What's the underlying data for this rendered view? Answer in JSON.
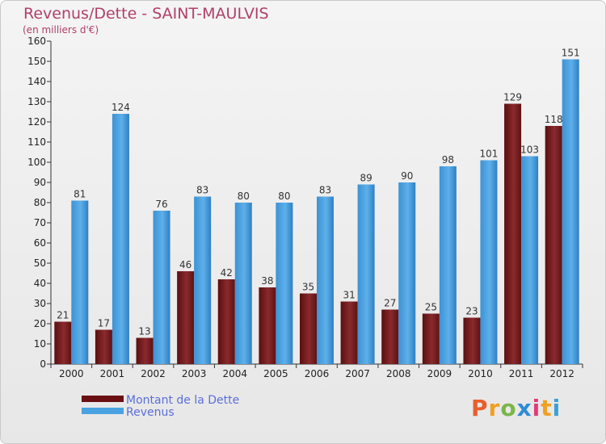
{
  "header": {
    "title": "Revenus/Dette - SAINT-MAULVIS",
    "subtitle": "(en milliers d'€)"
  },
  "logo": {
    "text": "Proxiti",
    "colors": [
      "#e85f2b",
      "#f0a020",
      "#7ab648",
      "#2e8bd6",
      "#e23b7a",
      "#f0a020",
      "#3aa0d8"
    ]
  },
  "colors": {
    "dette": "#7a1a1c",
    "revenus": "#4aa3e0",
    "title": "#b0406a"
  },
  "chart_data": {
    "type": "bar",
    "title": "Revenus/Dette - SAINT-MAULVIS",
    "subtitle": "(en milliers d'€)",
    "xlabel": "",
    "ylabel": "",
    "ylim": [
      0,
      160
    ],
    "yticks": [
      0,
      10,
      20,
      30,
      40,
      50,
      60,
      70,
      80,
      90,
      100,
      110,
      120,
      130,
      140,
      150,
      160
    ],
    "grid": false,
    "legend_position": "bottom-left",
    "categories": [
      "2000",
      "2001",
      "2002",
      "2003",
      "2004",
      "2005",
      "2006",
      "2007",
      "2008",
      "2009",
      "2010",
      "2011",
      "2012"
    ],
    "series": [
      {
        "name": "Montant de la Dette",
        "color": "#7a1a1c",
        "values": [
          21,
          17,
          13,
          46,
          42,
          38,
          35,
          31,
          27,
          25,
          23,
          129,
          118
        ]
      },
      {
        "name": "Revenus",
        "color": "#4aa3e0",
        "values": [
          81,
          124,
          76,
          83,
          80,
          80,
          83,
          89,
          90,
          98,
          101,
          103,
          151
        ]
      }
    ]
  }
}
